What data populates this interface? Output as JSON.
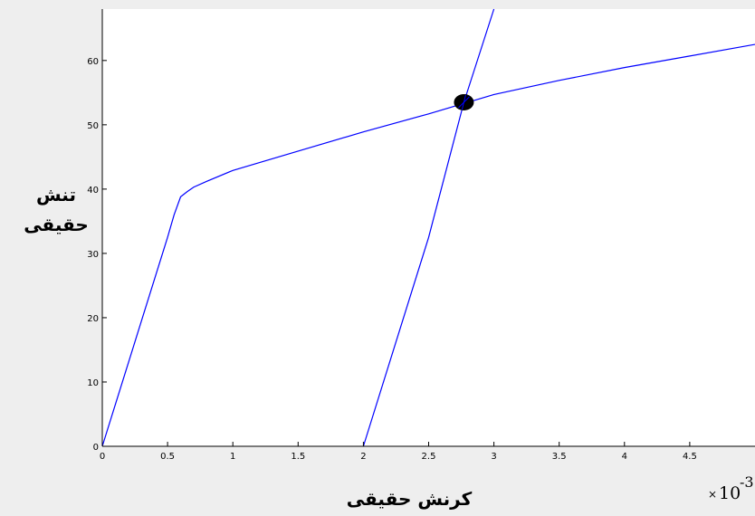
{
  "chart_data": {
    "type": "line",
    "title": "",
    "xlabel": "کرنش حقیقی",
    "ylabel_lines": [
      "تنش",
      "حقیقی"
    ],
    "x_exponent": {
      "times": "×",
      "base": "10",
      "power": "-3"
    },
    "xlim": [
      0,
      5
    ],
    "ylim": [
      0,
      68
    ],
    "xticks": [
      0,
      0.5,
      1,
      1.5,
      2,
      2.5,
      3,
      3.5,
      4,
      4.5
    ],
    "xtick_labels": [
      "0",
      "0.5",
      "1",
      "1.5",
      "2",
      "2.5",
      "3",
      "3.5",
      "4",
      "4.5"
    ],
    "yticks": [
      0,
      10,
      20,
      30,
      40,
      50,
      60
    ],
    "ytick_labels": [
      "0",
      "10",
      "20",
      "30",
      "40",
      "50",
      "60"
    ],
    "grid": false,
    "line_color": "#0000ff",
    "marker_color": "#000000",
    "series": [
      {
        "x": [
          0,
          0.1,
          0.2,
          0.3,
          0.4,
          0.5,
          0.55,
          0.6,
          0.65,
          0.7,
          0.8,
          1.0,
          1.5,
          2.0,
          2.5,
          3.0,
          3.5,
          4.0,
          4.5,
          5.0
        ],
        "values": [
          0,
          6.5,
          13,
          19.5,
          26,
          32.5,
          36,
          38.8,
          39.6,
          40.3,
          41.2,
          42.9,
          45.9,
          48.9,
          51.7,
          54.7,
          56.9,
          58.9,
          60.7,
          62.5
        ]
      },
      {
        "x": [
          2.0,
          2.5,
          2.77,
          3.0
        ],
        "values": [
          0,
          32.5,
          53.5,
          68
        ]
      }
    ],
    "intersection": {
      "x": 2.77,
      "y": 53.5
    }
  }
}
